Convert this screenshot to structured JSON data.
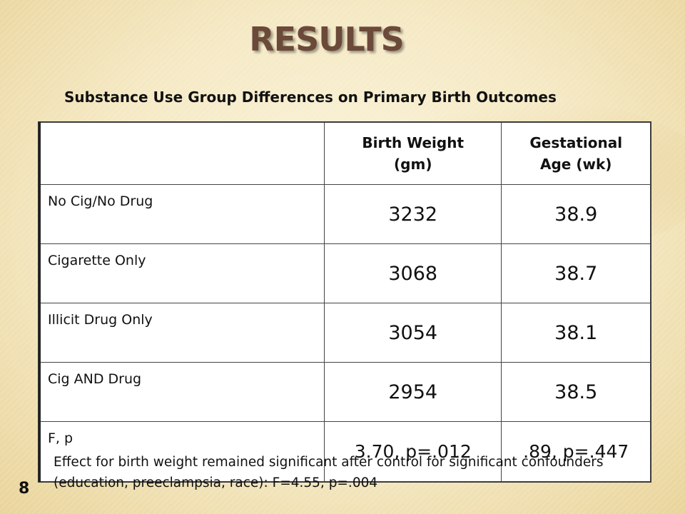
{
  "title": "RESULTS",
  "subtitle": "Substance Use Group Differences on Primary Birth Outcomes",
  "table": {
    "headers": {
      "col0": "",
      "col1": "Birth Weight (gm)",
      "col2": "Gestational Age (wk)"
    },
    "rows": [
      {
        "label": "No Cig/No Drug",
        "birth_weight": "3232",
        "gestational_age": "38.9"
      },
      {
        "label": "Cigarette Only",
        "birth_weight": "3068",
        "gestational_age": "38.7"
      },
      {
        "label": "Illicit Drug Only",
        "birth_weight": "3054",
        "gestational_age": "38.1"
      },
      {
        "label": "Cig AND Drug",
        "birth_weight": "2954",
        "gestational_age": "38.5"
      },
      {
        "label": "F, p",
        "birth_weight": "3.70, p=.012",
        "gestational_age": ".89, p=.447"
      }
    ]
  },
  "footnote": "Effect for birth weight remained significant after control for significant confounders (education, preeclampsia, race): F=4.55, p=.004",
  "page_number": "8",
  "colors": {
    "title": "#6b4a3a",
    "background": "#f6ecc9"
  }
}
